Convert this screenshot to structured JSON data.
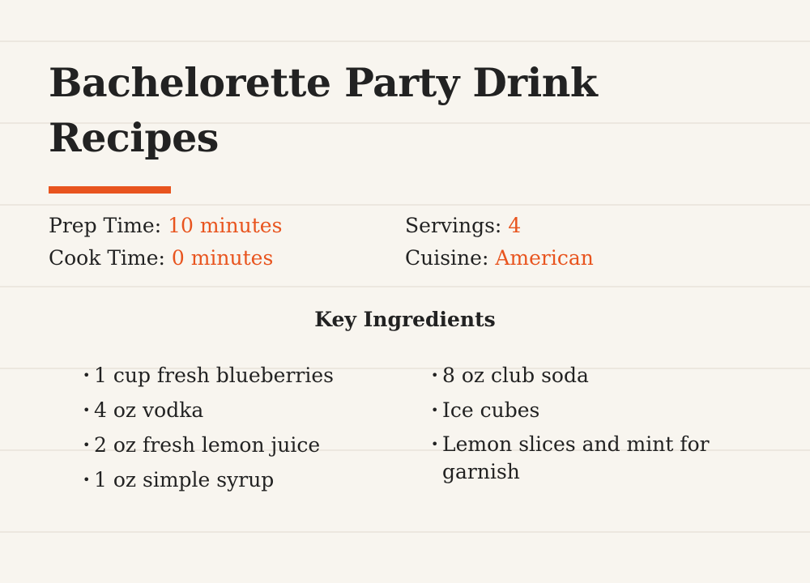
{
  "title": "Bachelorette Party Drink Recipes",
  "accent_color": "#e8541e",
  "meta": {
    "prep_label": "Prep Time:",
    "prep_value": "10 minutes",
    "cook_label": "Cook Time:",
    "cook_value": "0 minutes",
    "servings_label": "Servings:",
    "servings_value": "4",
    "cuisine_label": "Cuisine:",
    "cuisine_value": "American"
  },
  "ingredients_heading": "Key Ingredients",
  "ingredients_left": [
    "1 cup fresh blueberries",
    "4 oz vodka",
    "2 oz fresh lemon juice",
    "1 oz simple syrup"
  ],
  "ingredients_right": [
    "8 oz club soda",
    "Ice cubes",
    "Lemon slices and mint for garnish"
  ]
}
